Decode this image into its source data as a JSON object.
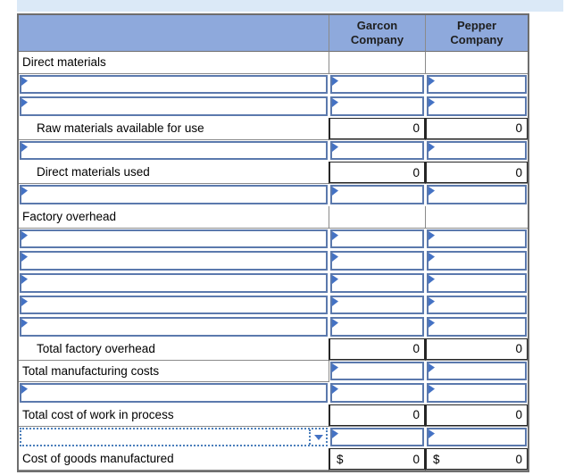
{
  "colors": {
    "strip": "#dbe9f7",
    "header_bg": "#8ea9dc",
    "grid": "#8a8a8a",
    "outer": "#6e6e6e",
    "input_border": "#5b79ad",
    "flag": "#4472c4",
    "dark": "#262626",
    "select_border": "#4a7ebb"
  },
  "table": {
    "header": {
      "col0": "",
      "col1": "Garcon\nCompany",
      "col2": "Pepper\nCompany"
    },
    "rows": [
      {
        "type": "section",
        "label": "Direct materials"
      },
      {
        "type": "input"
      },
      {
        "type": "input"
      },
      {
        "type": "subtotal",
        "label": "Raw materials available for use",
        "indent": true,
        "currency": "",
        "values": [
          "0",
          "0"
        ]
      },
      {
        "type": "input"
      },
      {
        "type": "subtotal",
        "label": "Direct materials used",
        "indent": true,
        "currency": "",
        "values": [
          "0",
          "0"
        ]
      },
      {
        "type": "input"
      },
      {
        "type": "section",
        "label": "Factory overhead"
      },
      {
        "type": "input"
      },
      {
        "type": "input"
      },
      {
        "type": "input"
      },
      {
        "type": "input"
      },
      {
        "type": "input"
      },
      {
        "type": "subtotal",
        "label": "Total factory overhead",
        "indent": true,
        "currency": "",
        "values": [
          "0",
          "0"
        ]
      },
      {
        "type": "label-input",
        "label": "Total manufacturing costs"
      },
      {
        "type": "input"
      },
      {
        "type": "subtotal",
        "label": "Total cost of work in process",
        "indent": false,
        "currency": "",
        "values": [
          "0",
          "0"
        ]
      },
      {
        "type": "select-input"
      },
      {
        "type": "subtotal",
        "label": "Cost of goods manufactured",
        "indent": false,
        "currency": "$",
        "values": [
          "0",
          "0"
        ]
      }
    ]
  }
}
